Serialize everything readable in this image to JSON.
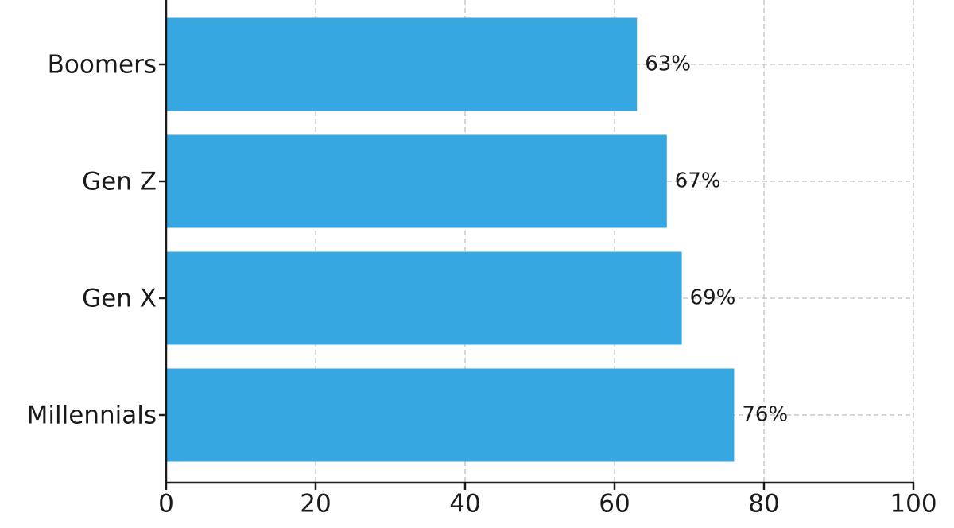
{
  "chart_data": {
    "type": "bar",
    "orientation": "horizontal",
    "categories": [
      "Boomers",
      "Gen Z",
      "Gen X",
      "Millennials"
    ],
    "values": [
      63,
      67,
      69,
      76
    ],
    "value_labels": [
      "63%",
      "67%",
      "69%",
      "76%"
    ],
    "color": "#36a7e0",
    "xlim": [
      0,
      100
    ],
    "xticks": [
      0,
      20,
      40,
      60,
      80,
      100
    ],
    "grid": true
  }
}
